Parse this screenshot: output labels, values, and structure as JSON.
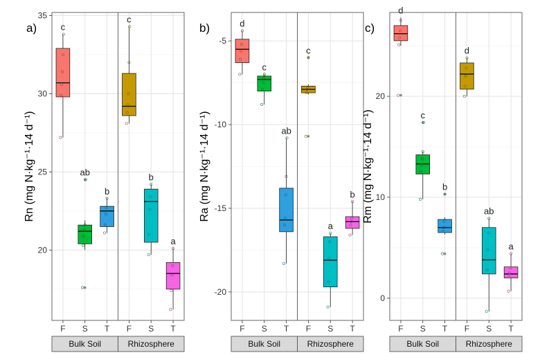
{
  "chart_data": [
    {
      "type": "box",
      "panel_label": "a)",
      "ylabel": "Rn (mg N·kg⁻¹·14 d⁻¹)",
      "ylim": [
        15.5,
        35.2
      ],
      "yticks": [
        20,
        25,
        30,
        35
      ],
      "facets": [
        "Bulk Soil",
        "Rhizosphere"
      ],
      "categories": [
        "F",
        "S",
        "T"
      ],
      "grid": true,
      "series": [
        {
          "facet": "Bulk Soil",
          "category": "F",
          "color": "#F8766D",
          "q1": 29.8,
          "median": 30.7,
          "q3": 32.9,
          "whisker_low": 27.2,
          "whisker_high": 33.8,
          "letter": "c",
          "points": [
            27.2,
            29.9,
            30.6,
            31.4,
            32.5,
            33.8
          ]
        },
        {
          "facet": "Bulk Soil",
          "category": "S",
          "color": "#00BA38",
          "q1": 20.4,
          "median": 21.2,
          "q3": 21.6,
          "whisker_low": 20.0,
          "whisker_high": 21.9,
          "outliers": [
            17.6,
            24.5
          ],
          "letter": "ab",
          "points": [
            17.6,
            20.3,
            20.9,
            21.3,
            21.6,
            24.5
          ]
        },
        {
          "facet": "Bulk Soil",
          "category": "T",
          "color": "#2E9FDF",
          "q1": 21.5,
          "median": 22.5,
          "q3": 22.8,
          "whisker_low": 21.1,
          "whisker_high": 23.3,
          "letter": "b",
          "points": [
            21.1,
            21.6,
            22.3,
            22.7,
            23.3
          ]
        },
        {
          "facet": "Rhizosphere",
          "category": "F",
          "color": "#C49A00",
          "q1": 28.6,
          "median": 29.2,
          "q3": 31.3,
          "whisker_low": 28.1,
          "whisker_high": 34.3,
          "letter": "c",
          "points": [
            28.1,
            28.8,
            29.3,
            30.0,
            32.0,
            34.3
          ]
        },
        {
          "facet": "Rhizosphere",
          "category": "S",
          "color": "#00BFC4",
          "q1": 20.5,
          "median": 23.1,
          "q3": 23.9,
          "whisker_low": 19.7,
          "whisker_high": 24.2,
          "letter": "b",
          "points": [
            19.7,
            21.0,
            22.6,
            23.4,
            24.2
          ]
        },
        {
          "facet": "Rhizosphere",
          "category": "T",
          "color": "#F564E3",
          "q1": 17.5,
          "median": 18.5,
          "q3": 19.2,
          "whisker_low": 16.2,
          "whisker_high": 20.1,
          "letter": "a",
          "points": [
            16.2,
            17.4,
            18.4,
            19.0,
            20.1
          ]
        }
      ]
    },
    {
      "type": "box",
      "panel_label": "b)",
      "ylabel": "Ra (mg N·kg⁻¹·14 d⁻¹)",
      "ylim": [
        -21.7,
        -3.3
      ],
      "yticks": [
        -5,
        -10,
        -15,
        -20
      ],
      "facets": [
        "Bulk Soil",
        "Rhizosphere"
      ],
      "categories": [
        "F",
        "S",
        "T"
      ],
      "grid": true,
      "series": [
        {
          "facet": "Bulk Soil",
          "category": "F",
          "color": "#F8766D",
          "q1": -6.3,
          "median": -5.5,
          "q3": -4.9,
          "whisker_low": -7.0,
          "whisker_high": -4.4,
          "letter": "d",
          "points": [
            -7.0,
            -6.1,
            -5.6,
            -5.2,
            -4.4
          ]
        },
        {
          "facet": "Bulk Soil",
          "category": "S",
          "color": "#00BA38",
          "q1": -8.0,
          "median": -7.3,
          "q3": -7.1,
          "whisker_low": -8.8,
          "whisker_high": -7.0,
          "letter": "c",
          "points": [
            -8.8,
            -7.9,
            -7.5,
            -7.2,
            -7.0
          ]
        },
        {
          "facet": "Bulk Soil",
          "category": "T",
          "color": "#2E9FDF",
          "q1": -16.4,
          "median": -15.7,
          "q3": -13.8,
          "whisker_low": -18.3,
          "whisker_high": -10.8,
          "letter": "ab",
          "points": [
            -18.3,
            -16.0,
            -15.6,
            -14.2,
            -13.1,
            -10.8
          ]
        },
        {
          "facet": "Rhizosphere",
          "category": "F",
          "color": "#C49A00",
          "q1": -8.1,
          "median": -7.9,
          "q3": -7.7,
          "whisker_low": -8.2,
          "whisker_high": -7.6,
          "outliers": [
            -6.0,
            -10.7
          ],
          "letter": "c",
          "points": [
            -10.7,
            -8.1,
            -7.9,
            -7.8,
            -6.0
          ]
        },
        {
          "facet": "Rhizosphere",
          "category": "S",
          "color": "#00BFC4",
          "q1": -19.7,
          "median": -18.1,
          "q3": -16.7,
          "whisker_low": -20.9,
          "whisker_high": -16.5,
          "letter": "a",
          "points": [
            -20.9,
            -19.4,
            -18.0,
            -17.0,
            -16.5
          ]
        },
        {
          "facet": "Rhizosphere",
          "category": "T",
          "color": "#F564E3",
          "q1": -16.2,
          "median": -15.8,
          "q3": -15.5,
          "whisker_low": -16.6,
          "whisker_high": -14.6,
          "letter": "b",
          "points": [
            -16.6,
            -16.0,
            -15.8,
            -15.6,
            -14.6
          ]
        }
      ]
    },
    {
      "type": "box",
      "panel_label": "c)",
      "ylabel": "Rm (mg N·kg⁻¹·14 d⁻¹)",
      "ylim": [
        -2.2,
        28.3
      ],
      "yticks": [
        0,
        10,
        20
      ],
      "facets": [
        "Bulk Soil",
        "Rhizosphere"
      ],
      "categories": [
        "F",
        "S",
        "T"
      ],
      "grid": true,
      "series": [
        {
          "facet": "Bulk Soil",
          "category": "F",
          "color": "#F8766D",
          "q1": 25.5,
          "median": 26.2,
          "q3": 27.0,
          "whisker_low": 25.0,
          "whisker_high": 27.8,
          "outliers": [
            20.1
          ],
          "letter": "d",
          "points": [
            20.1,
            25.1,
            25.8,
            26.5,
            27.5
          ]
        },
        {
          "facet": "Bulk Soil",
          "category": "S",
          "color": "#00BA38",
          "q1": 12.3,
          "median": 13.3,
          "q3": 14.2,
          "whisker_low": 9.8,
          "whisker_high": 14.5,
          "outliers": [
            17.4
          ],
          "letter": "c",
          "points": [
            9.8,
            12.5,
            13.2,
            13.8,
            14.5,
            17.4
          ]
        },
        {
          "facet": "Bulk Soil",
          "category": "T",
          "color": "#2E9FDF",
          "q1": 6.5,
          "median": 7.0,
          "q3": 7.8,
          "whisker_low": 6.3,
          "whisker_high": 8.0,
          "outliers": [
            4.4,
            10.3
          ],
          "letter": "b",
          "points": [
            4.4,
            6.6,
            7.0,
            7.6,
            10.3
          ]
        },
        {
          "facet": "Rhizosphere",
          "category": "F",
          "color": "#C49A00",
          "q1": 20.7,
          "median": 22.2,
          "q3": 23.3,
          "whisker_low": 20.0,
          "whisker_high": 23.8,
          "letter": "d",
          "points": [
            20.0,
            21.0,
            22.0,
            22.8,
            23.8
          ]
        },
        {
          "facet": "Rhizosphere",
          "category": "S",
          "color": "#00BFC4",
          "q1": 2.4,
          "median": 3.8,
          "q3": 7.0,
          "whisker_low": -1.3,
          "whisker_high": 7.9,
          "letter": "ab",
          "points": [
            -1.3,
            2.8,
            4.8,
            6.5,
            7.9
          ]
        },
        {
          "facet": "Rhizosphere",
          "category": "T",
          "color": "#F564E3",
          "q1": 2.0,
          "median": 2.4,
          "q3": 3.1,
          "whisker_low": 0.7,
          "whisker_high": 4.4,
          "letter": "a",
          "points": [
            0.7,
            2.1,
            2.5,
            3.0,
            4.4
          ]
        }
      ]
    }
  ]
}
